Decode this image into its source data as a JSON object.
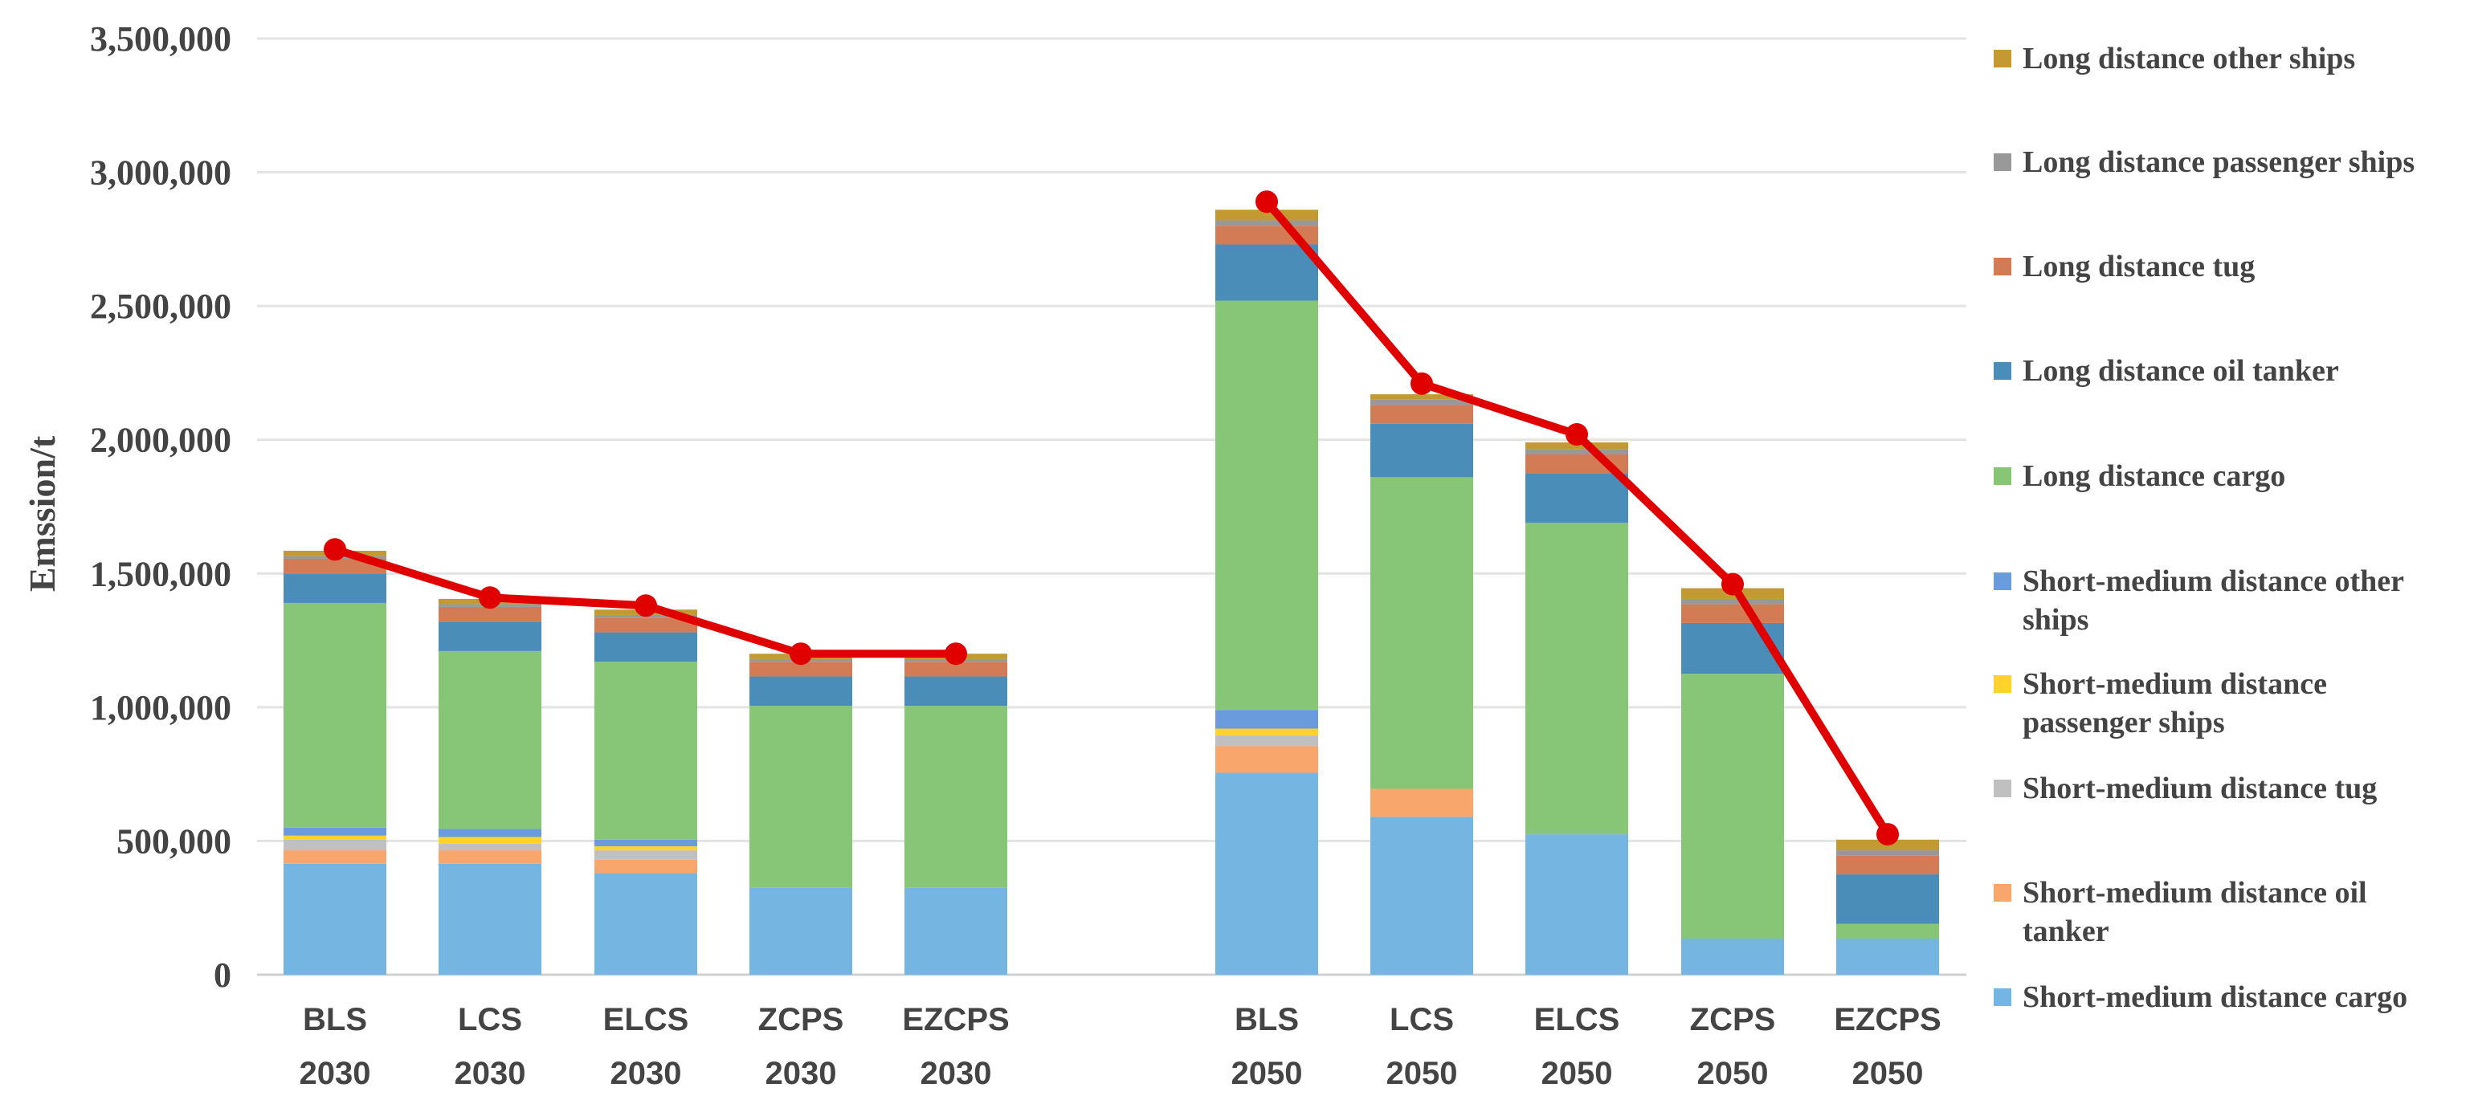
{
  "chart_data": {
    "type": "bar",
    "stacked": true,
    "title": "",
    "xlabel": "",
    "ylabel": "Emssion/t",
    "ylim": [
      0,
      3500000
    ],
    "yticks": [
      {
        "value": 0,
        "label": "0"
      },
      {
        "value": 500000,
        "label": "500,000"
      },
      {
        "value": 1000000,
        "label": "1,000,000"
      },
      {
        "value": 1500000,
        "label": "1,500,000"
      },
      {
        "value": 2000000,
        "label": "2,000,000"
      },
      {
        "value": 2500000,
        "label": "2,500,000"
      },
      {
        "value": 3000000,
        "label": "3,000,000"
      },
      {
        "value": 3500000,
        "label": "3,500,000"
      }
    ],
    "grid": true,
    "legend_position": "right",
    "categories": [
      {
        "scenario": "BLS",
        "year": "2030"
      },
      {
        "scenario": "LCS",
        "year": "2030"
      },
      {
        "scenario": "ELCS",
        "year": "2030"
      },
      {
        "scenario": "ZCPS",
        "year": "2030"
      },
      {
        "scenario": "EZCPS",
        "year": "2030"
      },
      {
        "scenario": "BLS",
        "year": "2050"
      },
      {
        "scenario": "LCS",
        "year": "2050"
      },
      {
        "scenario": "ELCS",
        "year": "2050"
      },
      {
        "scenario": "ZCPS",
        "year": "2050"
      },
      {
        "scenario": "EZCPS",
        "year": "2050"
      }
    ],
    "series": [
      {
        "name": "Short-medium distance cargo",
        "color": "#74B6E1",
        "values": [
          415000,
          415000,
          380000,
          325000,
          325000,
          755000,
          590000,
          525000,
          135000,
          135000
        ]
      },
      {
        "name": "Short-medium distance oil tanker",
        "color": "#F9A66C",
        "values": [
          50000,
          50000,
          50000,
          0,
          0,
          100000,
          105000,
          0,
          0,
          0
        ]
      },
      {
        "name": "Short-medium distance tug",
        "color": "#C0C0C0",
        "values": [
          40000,
          25000,
          35000,
          0,
          0,
          40000,
          0,
          0,
          0,
          0
        ]
      },
      {
        "name": "Short-medium distance passenger ships",
        "color": "#FFD22E",
        "values": [
          15000,
          25000,
          15000,
          0,
          0,
          25000,
          0,
          0,
          0,
          0
        ]
      },
      {
        "name": "Short-medium distance other ships",
        "color": "#6A9BDD",
        "values": [
          30000,
          30000,
          25000,
          0,
          0,
          70000,
          0,
          0,
          0,
          0
        ]
      },
      {
        "name": "Long distance cargo",
        "color": "#88C677",
        "values": [
          840000,
          665000,
          665000,
          680000,
          680000,
          1530000,
          1165000,
          1165000,
          990000,
          55000
        ]
      },
      {
        "name": "Long distance oil tanker",
        "color": "#4A8DB9",
        "values": [
          110000,
          110000,
          110000,
          110000,
          110000,
          210000,
          200000,
          185000,
          190000,
          185000
        ]
      },
      {
        "name": "Long distance tug",
        "color": "#D27B55",
        "values": [
          55000,
          55000,
          55000,
          55000,
          55000,
          70000,
          70000,
          70000,
          70000,
          70000
        ]
      },
      {
        "name": "Long distance passenger ships",
        "color": "#989898",
        "values": [
          10000,
          10000,
          10000,
          10000,
          10000,
          20000,
          20000,
          20000,
          20000,
          20000
        ]
      },
      {
        "name": "Long distance other ships",
        "color": "#C39A32",
        "values": [
          20000,
          20000,
          20000,
          20000,
          20000,
          40000,
          20000,
          25000,
          40000,
          40000
        ]
      }
    ],
    "total_line": {
      "name": "Total",
      "color": "#E00000",
      "values": [
        1590000,
        1410000,
        1380000,
        1200000,
        1200000,
        2890000,
        2210000,
        2020000,
        1460000,
        525000
      ]
    },
    "legend_order": [
      {
        "label": [
          "Long distance other ships"
        ],
        "series": 9
      },
      {
        "label": [
          "Long distance passenger ships"
        ],
        "series": 8
      },
      {
        "label": [
          "Long distance tug"
        ],
        "series": 7
      },
      {
        "label": [
          "Long distance oil tanker"
        ],
        "series": 6
      },
      {
        "label": [
          "Long distance cargo"
        ],
        "series": 5
      },
      {
        "label": [
          "Short-medium distance other",
          "ships"
        ],
        "series": 4
      },
      {
        "label": [
          "Short-medium distance",
          "passenger ships"
        ],
        "series": 3
      },
      {
        "label": [
          "Short-medium distance tug"
        ],
        "series": 2
      },
      {
        "label": [
          "Short-medium distance oil",
          "tanker"
        ],
        "series": 1
      },
      {
        "label": [
          "Short-medium distance cargo"
        ],
        "series": 0
      }
    ]
  }
}
